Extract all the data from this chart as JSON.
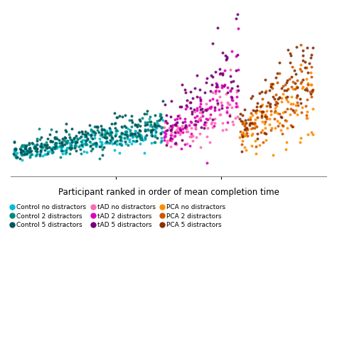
{
  "title": "",
  "xlabel": "Participant ranked in order of mean completion time",
  "ylabel": "",
  "background_color": "#ffffff",
  "groups": [
    {
      "name": "Control no distractors",
      "color": "#00BCD4",
      "x_start": 1,
      "x_end": 30,
      "base_y_mean_start": 1.5,
      "base_y_mean_end": 3.5,
      "spread_start": 0.3,
      "spread_end": 0.7
    },
    {
      "name": "Control 2 distractors",
      "color": "#00897B",
      "x_start": 1,
      "x_end": 30,
      "base_y_mean_start": 1.6,
      "base_y_mean_end": 3.8,
      "spread_start": 0.35,
      "spread_end": 0.8
    },
    {
      "name": "Control 5 distractors",
      "color": "#00565A",
      "x_start": 1,
      "x_end": 30,
      "base_y_mean_start": 1.7,
      "base_y_mean_end": 4.2,
      "spread_start": 0.4,
      "spread_end": 0.9
    },
    {
      "name": "tAD no distractors",
      "color": "#FF69B4",
      "x_start": 31,
      "x_end": 45,
      "base_y_mean_start": 3.0,
      "base_y_mean_end": 5.5,
      "spread_start": 0.5,
      "spread_end": 1.5
    },
    {
      "name": "tAD 2 distractors",
      "color": "#DD00BB",
      "x_start": 31,
      "x_end": 45,
      "base_y_mean_start": 3.3,
      "base_y_mean_end": 7.0,
      "spread_start": 0.6,
      "spread_end": 2.0
    },
    {
      "name": "tAD 5 distractors",
      "color": "#770077",
      "x_start": 31,
      "x_end": 45,
      "base_y_mean_start": 3.5,
      "base_y_mean_end": 9.5,
      "spread_start": 0.7,
      "spread_end": 2.5
    },
    {
      "name": "PCA no distractors",
      "color": "#FF8C00",
      "x_start": 46,
      "x_end": 60,
      "base_y_mean_start": 3.0,
      "base_y_mean_end": 6.0,
      "spread_start": 0.6,
      "spread_end": 1.8
    },
    {
      "name": "PCA 2 distractors",
      "color": "#CC5500",
      "x_start": 46,
      "x_end": 60,
      "base_y_mean_start": 3.5,
      "base_y_mean_end": 7.5,
      "spread_start": 0.7,
      "spread_end": 2.0
    },
    {
      "name": "PCA 5 distractors",
      "color": "#8B3000",
      "x_start": 46,
      "x_end": 60,
      "base_y_mean_start": 4.0,
      "base_y_mean_end": 9.0,
      "spread_start": 0.8,
      "spread_end": 2.2
    }
  ],
  "legend_entries": [
    {
      "label": "Control no distractors",
      "color": "#00BCD4"
    },
    {
      "label": "Control 2 distractors",
      "color": "#00897B"
    },
    {
      "label": "Control 5 distractors",
      "color": "#00565A"
    },
    {
      "label": "tAD no distractors",
      "color": "#FF69B4"
    },
    {
      "label": "tAD 2 distractors",
      "color": "#DD00BB"
    },
    {
      "label": "tAD 5 distractors",
      "color": "#770077"
    },
    {
      "label": "PCA no distractors",
      "color": "#FF8C00"
    },
    {
      "label": "PCA 2 distractors",
      "color": "#CC5500"
    },
    {
      "label": "PCA 5 distractors",
      "color": "#8B3000"
    }
  ],
  "marker_size": 8,
  "alpha": 0.9,
  "n_trials": 6,
  "ylim": [
    -0.5,
    14
  ],
  "xlim": [
    0,
    63
  ]
}
